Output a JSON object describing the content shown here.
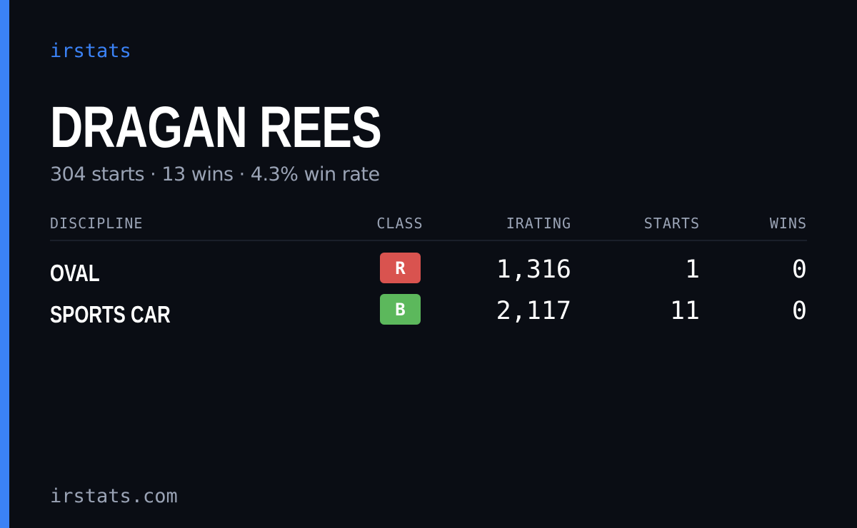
{
  "brand": "irstats",
  "driver": {
    "name": "DRAGAN REES",
    "summary": "304 starts · 13 wins · 4.3% win rate"
  },
  "table": {
    "headers": [
      "DISCIPLINE",
      "CLASS",
      "IRATING",
      "STARTS",
      "WINS"
    ],
    "rows": [
      {
        "discipline": "OVAL",
        "class": "R",
        "class_color": "#d9534f",
        "irating": "1,316",
        "starts": 1,
        "wins": 0
      },
      {
        "discipline": "SPORTS CAR",
        "class": "B",
        "class_color": "#5cb85c",
        "irating": "2,117",
        "starts": 11,
        "wins": 0
      }
    ]
  },
  "footer": "irstats.com"
}
